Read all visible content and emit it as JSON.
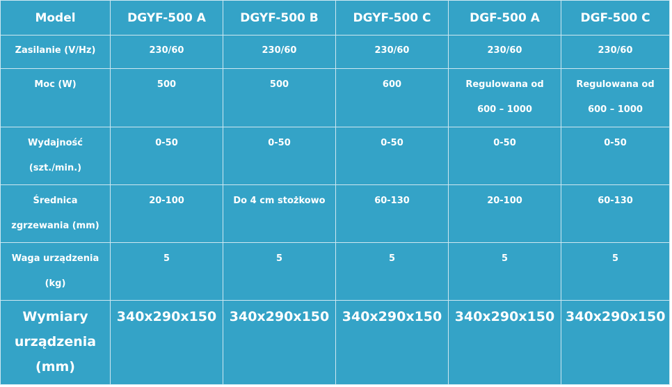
{
  "table": {
    "header": {
      "label": "Model",
      "models": [
        "DGYF-500 A",
        "DGYF-500 B",
        "DGYF-500 C",
        "DGF-500 A",
        "DGF-500 C"
      ]
    },
    "rows": [
      {
        "label_lines": [
          "Zasilanie (V/Hz)"
        ],
        "values": [
          [
            "230/60"
          ],
          [
            "230/60"
          ],
          [
            "230/60"
          ],
          [
            "230/60"
          ],
          [
            "230/60"
          ]
        ]
      },
      {
        "label_lines": [
          "Moc (W)"
        ],
        "values": [
          [
            "500"
          ],
          [
            "500"
          ],
          [
            "600"
          ],
          [
            "Regulowana od",
            "600 – 1000"
          ],
          [
            "Regulowana od",
            "600 – 1000"
          ]
        ]
      },
      {
        "label_lines": [
          "Wydajność",
          "(szt./min.)"
        ],
        "values": [
          [
            "0-50"
          ],
          [
            "0-50"
          ],
          [
            "0-50"
          ],
          [
            "0-50"
          ],
          [
            "0-50"
          ]
        ]
      },
      {
        "label_lines": [
          "Średnica",
          "zgrzewania (mm)"
        ],
        "values": [
          [
            "20-100"
          ],
          [
            "Do 4 cm stożkowo"
          ],
          [
            "60-130"
          ],
          [
            "20-100"
          ],
          [
            "60-130"
          ]
        ]
      },
      {
        "label_lines": [
          "Waga urządzenia",
          "(kg)"
        ],
        "values": [
          [
            "5"
          ],
          [
            "5"
          ],
          [
            "5"
          ],
          [
            "5"
          ],
          [
            "5"
          ]
        ]
      },
      {
        "label_lines": [
          "Wymiary",
          "urządzenia",
          "(mm)"
        ],
        "values": [
          [
            "340x290x150"
          ],
          [
            "340x290x150"
          ],
          [
            "340x290x150"
          ],
          [
            "340x290x150"
          ],
          [
            "340x290x150"
          ]
        ]
      }
    ]
  }
}
